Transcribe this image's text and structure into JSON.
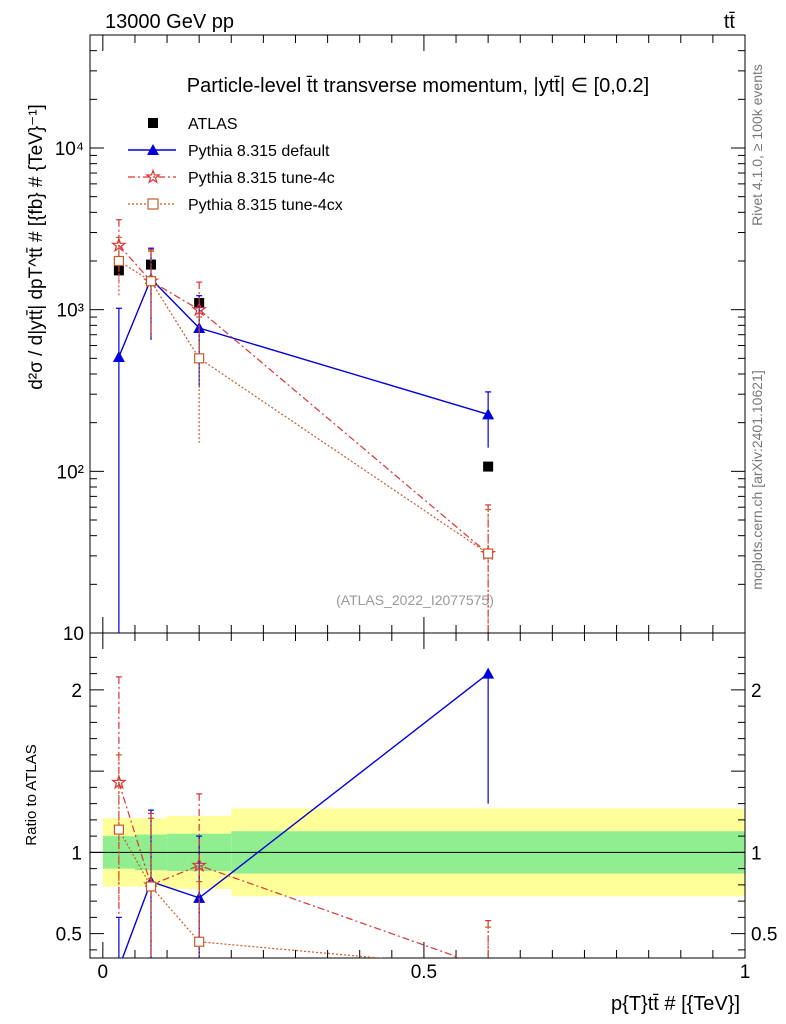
{
  "header": {
    "left": "13000 GeV pp",
    "right": "tt̄"
  },
  "side_labels": {
    "rivet": "Rivet 4.1.0, ≥ 100k events",
    "mcplots": "mcplots.cern.ch [arXiv:2401.10621]"
  },
  "colors": {
    "atlas": "#000000",
    "default": "#0000dd",
    "tune4c": "#dd3333",
    "tune4cx": "#c85a28",
    "band_inner": "#90ee90",
    "band_outer": "#ffff99"
  },
  "chart_data": [
    {
      "type": "scatter",
      "panel": "main",
      "title": "Particle-level t̄t transverse momentum, |ytt̄| ∈ [0,0.2]",
      "ylabel": "d²σ / d|ytt̄| dpT^tt̄ # [{fb} # {TeV}⁻¹]",
      "yscale": "log",
      "ylim": [
        10,
        50000
      ],
      "xlim": [
        -0.02,
        1.0
      ],
      "yticks": [
        {
          "value": 10,
          "label": "10"
        },
        {
          "value": 100,
          "label": "10²"
        },
        {
          "value": 1000,
          "label": "10³"
        },
        {
          "value": 10000,
          "label": "10⁴"
        }
      ],
      "watermark": "(ATLAS_2022_I2077575)",
      "legend": [
        "ATLAS",
        "Pythia 8.315 default",
        "Pythia 8.315 tune-4c",
        "Pythia 8.315 tune-4cx"
      ],
      "series": [
        {
          "name": "ATLAS",
          "key": "atlas",
          "marker": "square",
          "line": "none",
          "x": [
            0.025,
            0.075,
            0.15,
            0.6
          ],
          "y": [
            1750,
            1900,
            1100,
            107
          ],
          "ylo": [
            1700,
            1850,
            1050,
            105
          ],
          "yhi": [
            1800,
            1950,
            1150,
            109
          ]
        },
        {
          "name": "Pythia 8.315 default",
          "key": "default",
          "marker": "triangle",
          "line": "solid",
          "x": [
            0.025,
            0.075,
            0.15,
            0.6
          ],
          "y": [
            510,
            1550,
            770,
            225
          ],
          "ylo": [
            5,
            650,
            330,
            140
          ],
          "yhi": [
            1020,
            2400,
            1220,
            310
          ]
        },
        {
          "name": "Pythia 8.315 tune-4c",
          "key": "tune4c",
          "marker": "star",
          "line": "dashdot",
          "x": [
            0.025,
            0.075,
            0.15,
            0.6
          ],
          "y": [
            2500,
            1500,
            1000,
            31
          ],
          "ylo": [
            1500,
            650,
            520,
            5
          ],
          "yhi": [
            3600,
            2350,
            1480,
            62
          ]
        },
        {
          "name": "Pythia 8.315 tune-4cx",
          "key": "tune4cx",
          "marker": "opensquare",
          "line": "dotted",
          "x": [
            0.025,
            0.075,
            0.15,
            0.6
          ],
          "y": [
            2000,
            1500,
            500,
            31
          ],
          "ylo": [
            1200,
            700,
            150,
            5
          ],
          "yhi": [
            2800,
            2300,
            900,
            58
          ]
        }
      ]
    },
    {
      "type": "scatter",
      "panel": "ratio",
      "ylabel": "Ratio to ATLAS",
      "xlabel": "p{T}tt̄ # [{TeV}]",
      "ylim": [
        0.35,
        2.35
      ],
      "xlim": [
        -0.02,
        1.0
      ],
      "yticks": [
        {
          "value": 0.5,
          "label": "0.5"
        },
        {
          "value": 1,
          "label": "1"
        },
        {
          "value": 2,
          "label": "2"
        }
      ],
      "xticks": [
        {
          "value": 0,
          "label": "0"
        },
        {
          "value": 0.5,
          "label": "0.5"
        },
        {
          "value": 1,
          "label": "1"
        }
      ],
      "bands": [
        {
          "x0": 0.0,
          "x1": 0.05,
          "outer": [
            0.79,
            1.21
          ],
          "inner": [
            0.9,
            1.1
          ]
        },
        {
          "x0": 0.05,
          "x1": 0.1,
          "outer": [
            0.79,
            1.21
          ],
          "inner": [
            0.89,
            1.11
          ]
        },
        {
          "x0": 0.1,
          "x1": 0.2,
          "outer": [
            0.775,
            1.225
          ],
          "inner": [
            0.885,
            1.115
          ]
        },
        {
          "x0": 0.2,
          "x1": 1.0,
          "outer": [
            0.73,
            1.27
          ],
          "inner": [
            0.87,
            1.13
          ]
        }
      ],
      "series": [
        {
          "name": "Pythia 8.315 default",
          "key": "default",
          "marker": "triangle",
          "line": "solid",
          "x": [
            0.025,
            0.075,
            0.15,
            0.6
          ],
          "y": [
            0.29,
            0.82,
            0.72,
            2.1
          ],
          "ylo": [
            0.0,
            0.35,
            0.3,
            1.3
          ],
          "yhi": [
            0.6,
            1.26,
            1.1,
            2.1
          ]
        },
        {
          "name": "Pythia 8.315 tune-4c",
          "key": "tune4c",
          "marker": "star",
          "line": "dashdot",
          "x": [
            0.025,
            0.075,
            0.15,
            0.6
          ],
          "y": [
            1.43,
            0.8,
            0.92,
            0.29
          ],
          "ylo": [
            0.6,
            0.3,
            0.48,
            0.0
          ],
          "yhi": [
            2.08,
            1.24,
            1.36,
            0.58
          ]
        },
        {
          "name": "Pythia 8.315 tune-4cx",
          "key": "tune4cx",
          "marker": "opensquare",
          "line": "dotted",
          "x": [
            0.025,
            0.075,
            0.15,
            0.6
          ],
          "y": [
            1.14,
            0.79,
            0.45,
            0.29
          ],
          "ylo": [
            0.7,
            0.35,
            0.14,
            0.0
          ],
          "yhi": [
            1.6,
            1.21,
            0.82,
            0.54
          ]
        }
      ]
    }
  ]
}
